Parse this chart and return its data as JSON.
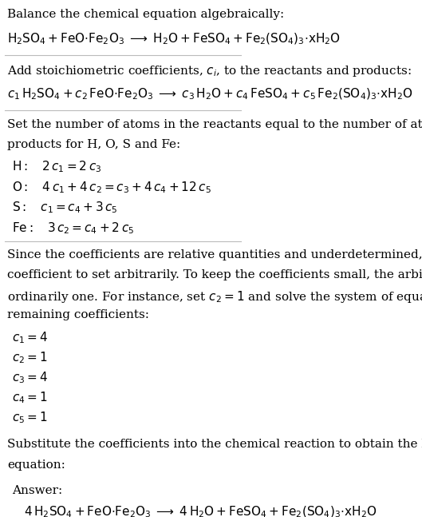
{
  "bg_color": "#ffffff",
  "text_color": "#000000",
  "section_line_color": "#cccccc",
  "answer_box_color": "#dff0f8",
  "answer_box_edge": "#a0c8e0",
  "title_fontsize": 11,
  "body_fontsize": 11,
  "math_fontsize": 11,
  "figsize": [
    5.29,
    6.47
  ],
  "dpi": 100,
  "section1_title": "Balance the chemical equation algebraically:",
  "section1_eq": "$\\mathrm{H_2SO_4 + FeO{\\cdot}Fe_2O_3 \\;\\longrightarrow\\; H_2O + FeSO_4 + Fe_2(SO_4)_3{\\cdot}xH_2O}$",
  "section2_title": "Add stoichiometric coefficients, $c_i$, to the reactants and products:",
  "section2_eq": "$c_1\\,\\mathrm{H_2SO_4} + c_2\\,\\mathrm{FeO{\\cdot}Fe_2O_3} \\;\\longrightarrow\\; c_3\\,\\mathrm{H_2O} + c_4\\,\\mathrm{FeSO_4} + c_5\\,\\mathrm{Fe_2(SO_4)_3{\\cdot}xH_2O}$",
  "section3_title": "Set the number of atoms in the reactants equal to the number of atoms in the\nproducts for H, O, S and Fe:",
  "section3_lines": [
    "$\\mathrm{H:}\\quad 2\\,c_1 = 2\\,c_3$",
    "$\\mathrm{O:}\\quad 4\\,c_1 + 4\\,c_2 = c_3 + 4\\,c_4 + 12\\,c_5$",
    "$\\mathrm{S:}\\quad c_1 = c_4 + 3\\,c_5$",
    "$\\mathrm{Fe:}\\quad 3\\,c_2 = c_4 + 2\\,c_5$"
  ],
  "section4_title": "Since the coefficients are relative quantities and underdetermined, choose a\ncoefficient to set arbitrarily. To keep the coefficients small, the arbitrary value is\nordinarily one. For instance, set $c_2 = 1$ and solve the system of equations for the\nremaining coefficients:",
  "section4_lines": [
    "$c_1 = 4$",
    "$c_2 = 1$",
    "$c_3 = 4$",
    "$c_4 = 1$",
    "$c_5 = 1$"
  ],
  "section5_title": "Substitute the coefficients into the chemical reaction to obtain the balanced\nequation:",
  "answer_label": "Answer:",
  "answer_eq": "$\\mathrm{4\\,H_2SO_4 + FeO{\\cdot}Fe_2O_3 \\;\\longrightarrow\\; 4\\,H_2O + FeSO_4 + Fe_2(SO_4)_3{\\cdot}xH_2O}$"
}
